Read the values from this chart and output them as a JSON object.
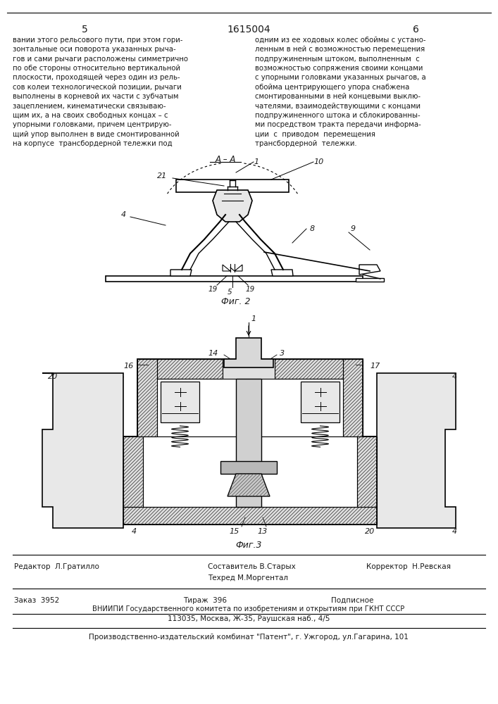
{
  "page_number_left": "5",
  "page_number_center": "1615004",
  "page_number_right": "6",
  "col_left_text": "вании этого рельсового пути, при этом гори-\nзонтальные оси поворота указанных рыча-\nгов и сами рычаги расположены симметрично\nпо обе стороны относительно вертикальной\nплоскости, проходящей через один из рель-\nсов колеи технологической позиции, рычаги\nвыполнены в корневой их части с зубчатым\nзацеплением, кинематически связываю-\nщим их, а на своих свободных концах – с\nупорными головками, причем центрирую-\nщий упор выполнен в виде смонтированной\nна корпусе  трансбордерной тележки под",
  "col_right_text": "одним из ее ходовых колес обоймы с устано-\nленным в ней с возможностью перемещения\nподпружиненным штоком, выполненным  с\nвозможностью сопряжения своими концами\nс упорными головками указанных рычагов, а\nобойма центрирующего упора снабжена\nсмонтированными в ней концевыми выклю-\nчателями, взаимодействующими с концами\nподпружиненного штока и сблокированны-\nми посредством тракта передачи информа-\nции  с  приводом  перемещения\nтрансбордерной  тележки.",
  "fig2_label": "Фиг. 2",
  "fig3_label": "Фиг.3",
  "editor_line": "Редактор  Л.Гратилло",
  "composer_line1": "Составитель В.Старых",
  "composer_line2": "Техред М.Моргентал",
  "corrector_line": "Корректор  Н.Ревская",
  "order_line": "Заказ  3952",
  "circulation_line": "Тираж  396",
  "subscription_line": "Подписное",
  "vniiipi_line1": "ВНИИПИ Государственного комитета по изобретениям и открытиям при ГКНТ СССР",
  "vniiipi_line2": "113035, Москва, Ж-35, Раушская наб., 4/5",
  "publisher_line": "Производственно-издательский комбинат \"Патент\", г. Ужгород, ул.Гагарина, 101",
  "bg_color": "#ffffff",
  "text_color": "#1a1a1a",
  "line_color": "#000000"
}
